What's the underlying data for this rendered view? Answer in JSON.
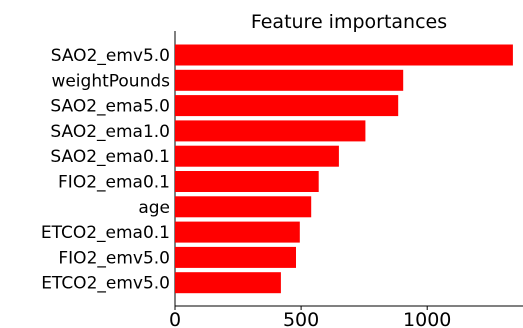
{
  "chart_data": {
    "type": "bar",
    "orientation": "horizontal",
    "title": "Feature importances",
    "xlabel": "",
    "ylabel": "",
    "categories": [
      "SAO2_emv5.0",
      "weightPounds",
      "SAO2_ema5.0",
      "SAO2_ema1.0",
      "SAO2_ema0.1",
      "FIO2_ema0.1",
      "age",
      "ETCO2_ema0.1",
      "FIO2_emv5.0",
      "ETCO2_emv5.0"
    ],
    "values": [
      1340,
      905,
      885,
      755,
      650,
      570,
      540,
      495,
      480,
      420
    ],
    "xlim": [
      0,
      1380
    ],
    "xticks": [
      0,
      500,
      1000
    ],
    "xtick_labels": [
      "0",
      "500",
      "1000"
    ],
    "bar_color": "#ff0000",
    "grid": false,
    "legend": "none"
  }
}
